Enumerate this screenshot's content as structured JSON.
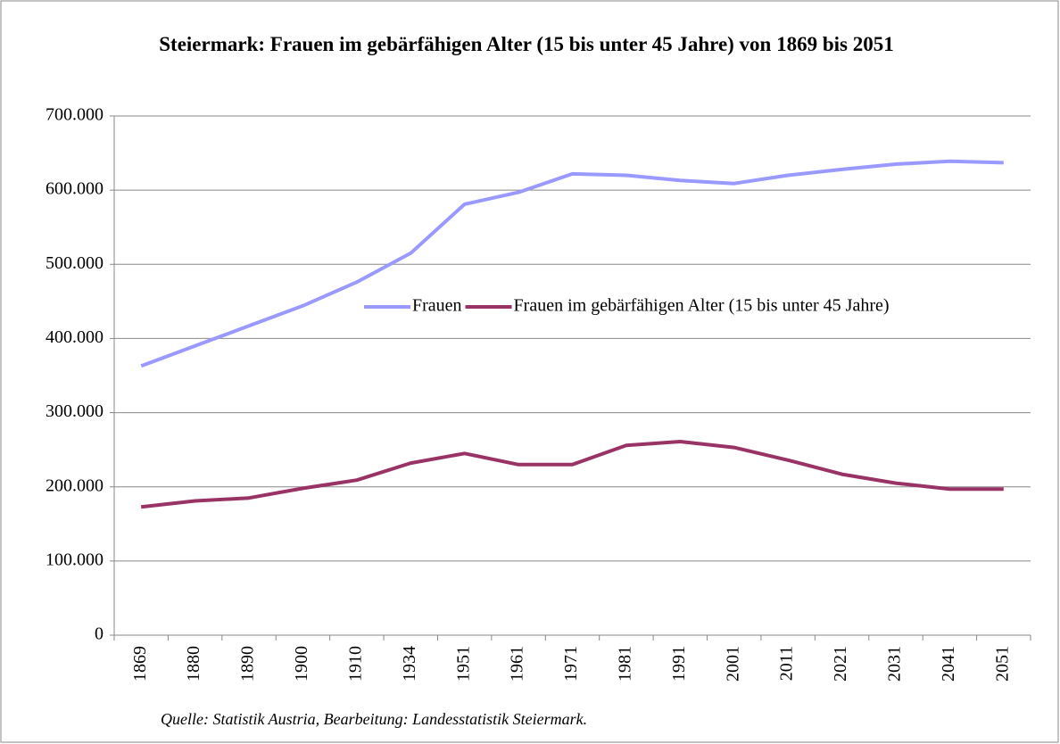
{
  "chart_data": {
    "type": "line",
    "title": "Steiermark: Frauen im gebärfähigen Alter (15 bis unter 45 Jahre) von 1869 bis 2051",
    "source": "Quelle: Statistik Austria, Bearbeitung: Landesstatistik Steiermark.",
    "categories": [
      "1869",
      "1880",
      "1890",
      "1900",
      "1910",
      "1934",
      "1951",
      "1961",
      "1971",
      "1981",
      "1991",
      "2001",
      "2011",
      "2021",
      "2031",
      "2041",
      "2051"
    ],
    "series": [
      {
        "name": "Frauen",
        "color": "#9999ff",
        "values": [
          363000,
          390000,
          417000,
          444000,
          476000,
          515000,
          581000,
          597000,
          622000,
          620000,
          613000,
          609000,
          620000,
          628000,
          635000,
          639000,
          637000
        ]
      },
      {
        "name": "Frauen im gebärfähigen Alter (15 bis unter 45 Jahre)",
        "color": "#993366",
        "values": [
          173000,
          181000,
          185000,
          198000,
          209000,
          232000,
          245000,
          230000,
          230000,
          256000,
          261000,
          253000,
          236000,
          217000,
          205000,
          197000,
          197000
        ]
      }
    ],
    "ylim": [
      0,
      700000
    ],
    "yticks": [
      0,
      {
        "value": 100000,
        "label": "100.000"
      },
      {
        "value": 200000,
        "label": "200.000"
      },
      {
        "value": 300000,
        "label": "300.000"
      },
      {
        "value": 400000,
        "label": "400.000"
      },
      {
        "value": 500000,
        "label": "500.000"
      },
      {
        "value": 600000,
        "label": "600.000"
      },
      {
        "value": 700000,
        "label": "700.000"
      }
    ],
    "grid": true,
    "legend": "inside-right"
  }
}
